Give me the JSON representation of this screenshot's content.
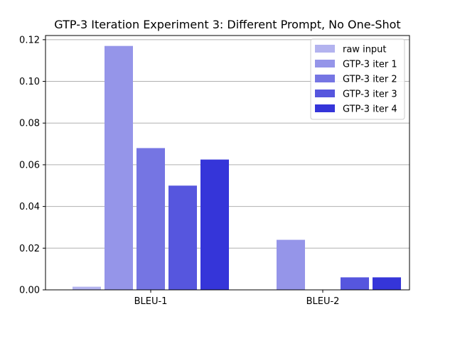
{
  "chart_data": {
    "type": "bar",
    "title": "GTP-3 Iteration Experiment 3: Different Prompt, No One-Shot",
    "xlabel": "",
    "ylabel": "",
    "categories": [
      "BLEU-1",
      "BLEU-2"
    ],
    "ylim": [
      0,
      0.122
    ],
    "yticks": [
      0.0,
      0.02,
      0.04,
      0.06,
      0.08,
      0.1,
      0.12
    ],
    "ytick_labels": [
      "0.00",
      "0.02",
      "0.04",
      "0.06",
      "0.08",
      "0.10",
      "0.12"
    ],
    "grid": "horizontal",
    "legend_position": "top-right",
    "series": [
      {
        "name": "raw input",
        "color": "#b3b3ef",
        "values": [
          0.0015,
          0.0
        ]
      },
      {
        "name": "GTP-3 iter 1",
        "color": "#9595e9",
        "values": [
          0.117,
          0.024
        ]
      },
      {
        "name": "GTP-3 iter 2",
        "color": "#7575e3",
        "values": [
          0.068,
          0.0
        ]
      },
      {
        "name": "GTP-3 iter 3",
        "color": "#5656de",
        "values": [
          0.05,
          0.006
        ]
      },
      {
        "name": "GTP-3 iter 4",
        "color": "#3535d9",
        "values": [
          0.0625,
          0.006
        ]
      }
    ]
  }
}
